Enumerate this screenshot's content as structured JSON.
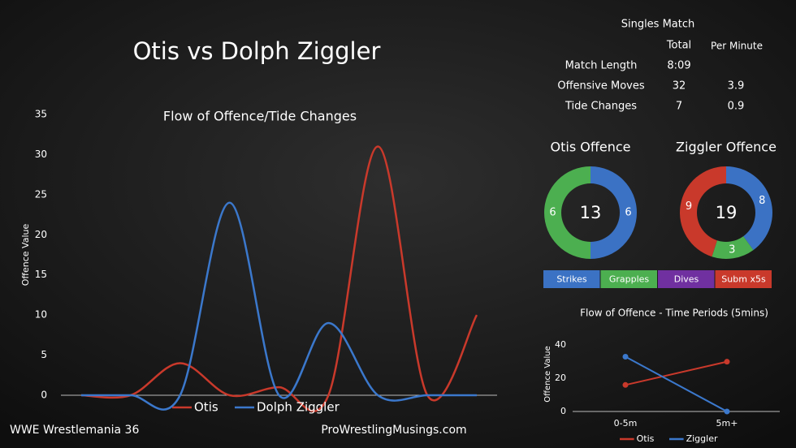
{
  "title": "Otis vs Dolph Ziggler",
  "footer_left": "WWE Wrestlemania 36",
  "footer_right": "ProWrestlingMusings.com",
  "stats": {
    "title": "Singles Match",
    "columns": [
      "Total",
      "Per Minute"
    ],
    "rows": [
      [
        "Match Length",
        "8:09"
      ],
      [
        "Offensive Moves",
        32,
        3.9
      ],
      [
        "Tide Changes",
        7,
        0.9
      ]
    ]
  },
  "chart_data": [
    {
      "type": "line",
      "title": "Flow of Offence/Tide Changes",
      "ylabel": "Offence Value",
      "smooth": true,
      "markers": false,
      "categories": [
        null,
        null,
        null,
        null,
        null,
        null,
        null,
        null,
        null
      ],
      "series": [
        {
          "name": "Otis",
          "color": "#c9392b",
          "values": [
            0,
            0,
            4,
            0,
            1,
            0,
            31,
            0,
            10
          ]
        },
        {
          "name": "Dolph Ziggler",
          "color": "#3b78cc",
          "values": [
            0,
            0,
            0,
            24,
            0,
            9,
            0,
            0,
            0
          ]
        }
      ],
      "ylim": [
        0,
        35
      ],
      "yticks": [
        0,
        5,
        10,
        15,
        20,
        25,
        30,
        35
      ],
      "grid": false,
      "legend": "bottom"
    },
    {
      "type": "pie",
      "title": "Otis Offence",
      "center_text": 13,
      "categories": [
        "Strikes",
        "Grapples",
        "Dives",
        "Subm x5s"
      ],
      "colors": [
        "#3b72c4",
        "#4caf50",
        "#7030a0",
        "#c9392b"
      ],
      "values": [
        6,
        6,
        0,
        0
      ],
      "legend": "bottom"
    },
    {
      "type": "pie",
      "title": "Ziggler Offence",
      "center_text": 19,
      "colors": [
        "#3b72c4",
        "#4caf50",
        "#7030a0",
        "#c9392b"
      ],
      "values": [
        8,
        3,
        0,
        9
      ]
    },
    {
      "type": "line",
      "title": "Flow of Offence  - Time Periods (5mins)",
      "ylabel": "Offence Value",
      "smooth": false,
      "markers": true,
      "categories": [
        "0-5m",
        "5m+"
      ],
      "series": [
        {
          "name": "Otis",
          "color": "#c9392b",
          "values": [
            16,
            30
          ]
        },
        {
          "name": "Ziggler",
          "color": "#3b78cc",
          "values": [
            33,
            0
          ]
        }
      ],
      "ylim": [
        0,
        45
      ],
      "yticks": [
        0,
        20,
        40
      ],
      "grid": false,
      "legend": "bottom"
    }
  ]
}
